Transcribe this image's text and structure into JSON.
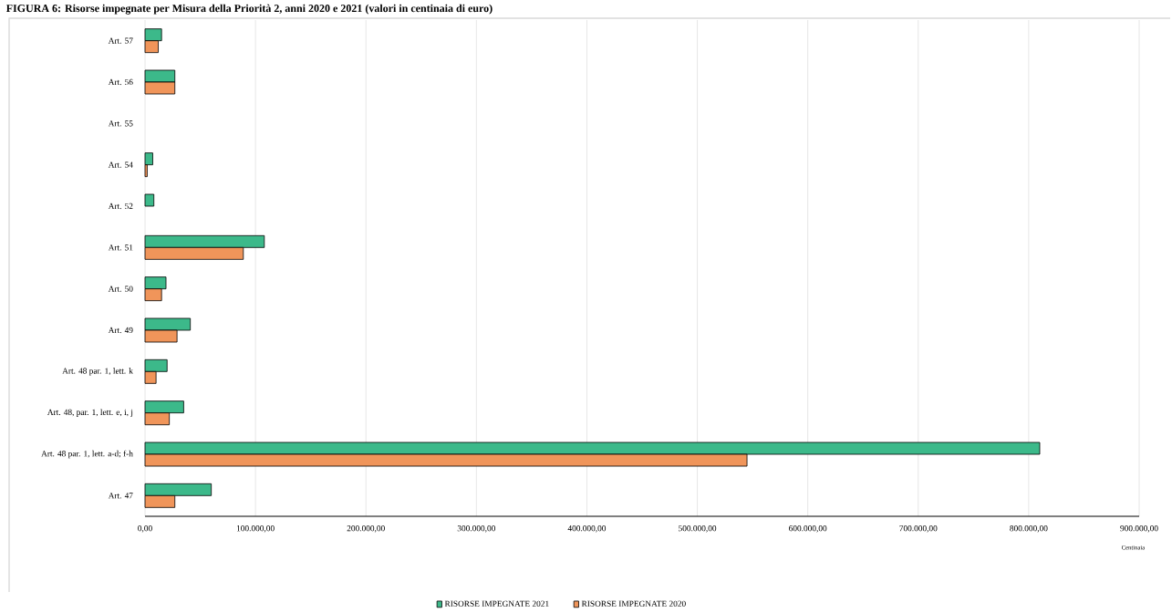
{
  "chart_data": {
    "type": "bar",
    "orientation": "horizontal",
    "title": "FIGURA 6: Risorse impegnate per Misura della Priorità 2, anni 2020 e 2021 (valori in centinaia di euro)",
    "xlabel": "Centinaia",
    "categories": [
      "Art. 57",
      "Art. 56",
      "Art. 55",
      "Art. 54",
      "Art. 52",
      "Art. 51",
      "Art. 50",
      "Art. 49",
      "Art. 48 par. 1, lett. k",
      "Art. 48, par. 1, lett. e, i, j",
      "Art. 48 par. 1, lett. a-d; f-h",
      "Art. 47"
    ],
    "series": [
      {
        "name": "RISORSE IMPEGNATE 2021",
        "color": "#3cb98a",
        "values": [
          15000,
          27000,
          null,
          7000,
          8000,
          108000,
          19000,
          41000,
          20000,
          35000,
          810000,
          60000
        ]
      },
      {
        "name": "RISORSE IMPEGNATE 2020",
        "color": "#f0955a",
        "values": [
          12000,
          27000,
          null,
          2000,
          null,
          89000,
          15000,
          29000,
          10000,
          22000,
          545000,
          27000
        ]
      }
    ],
    "xlim": [
      0,
      900000
    ],
    "xticks": [
      {
        "value": 0,
        "label": "0,00"
      },
      {
        "value": 100000,
        "label": "100.000,00"
      },
      {
        "value": 200000,
        "label": "200.000,00"
      },
      {
        "value": 300000,
        "label": "300.000,00"
      },
      {
        "value": 400000,
        "label": "400.000,00"
      },
      {
        "value": 500000,
        "label": "500.000,00"
      },
      {
        "value": 600000,
        "label": "600.000,00"
      },
      {
        "value": 700000,
        "label": "700.000,00"
      },
      {
        "value": 800000,
        "label": "800.000,00"
      },
      {
        "value": 900000,
        "label": "900.000,00"
      }
    ],
    "grid": "x",
    "legend": "bottom"
  }
}
